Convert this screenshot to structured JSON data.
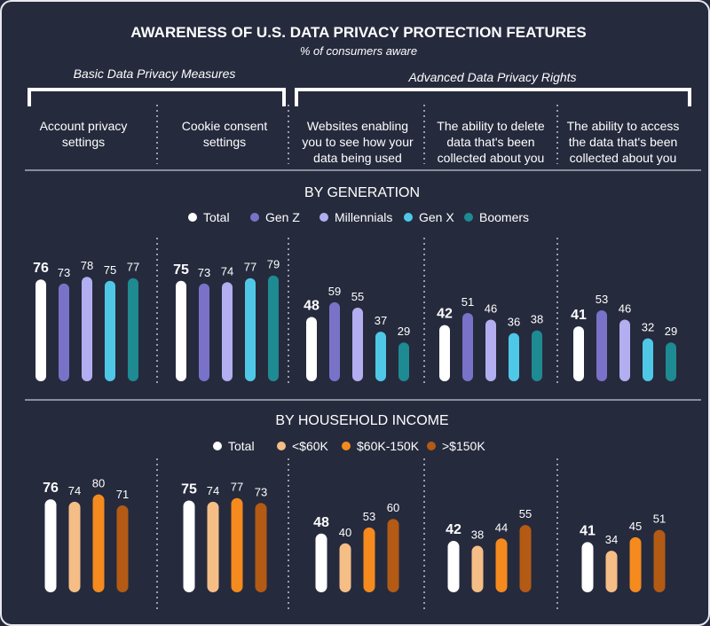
{
  "header": {
    "title": "AWARENESS OF U.S. DATA PRIVACY PROTECTION FEATURES",
    "subtitle": "% of consumers aware"
  },
  "groups": [
    {
      "label": "Basic Data Privacy Measures"
    },
    {
      "label": "Advanced Data Privacy Rights"
    }
  ],
  "columns": [
    {
      "lines": [
        "Account privacy",
        "settings"
      ]
    },
    {
      "lines": [
        "Cookie consent",
        "settings"
      ]
    },
    {
      "lines": [
        "Websites enabling",
        "you to see how your",
        "data being used"
      ]
    },
    {
      "lines": [
        "The ability to delete",
        "data that's been",
        "collected about you"
      ]
    },
    {
      "lines": [
        "The ability to access",
        "the data that's been",
        "collected about you"
      ]
    }
  ],
  "colors": {
    "background": "#262a3d",
    "frame": "#e8e8ee",
    "divider": "#8a8d9c",
    "total": "#ffffff",
    "gen_z": "#7a72c8",
    "millennials": "#b3aef0",
    "gen_x": "#4fc8e8",
    "boomers": "#1e8a92",
    "lt60k": "#f5be86",
    "k60_150": "#f58a1e",
    "gt150k": "#b35a14"
  },
  "chart_data": [
    {
      "type": "bar",
      "title": "BY GENERATION",
      "categories": [
        "Account privacy settings",
        "Cookie consent settings",
        "Websites enabling you to see how your data being used",
        "The ability to delete data that's been collected about you",
        "The ability to access the data that's been collected about you"
      ],
      "series": [
        {
          "name": "Total",
          "color": "#ffffff",
          "values": [
            76,
            75,
            48,
            42,
            41
          ]
        },
        {
          "name": "Gen Z",
          "color": "#7a72c8",
          "values": [
            73,
            73,
            59,
            51,
            53
          ]
        },
        {
          "name": "Millennials",
          "color": "#b3aef0",
          "values": [
            78,
            74,
            55,
            46,
            46
          ]
        },
        {
          "name": "Gen X",
          "color": "#4fc8e8",
          "values": [
            75,
            77,
            37,
            36,
            32
          ]
        },
        {
          "name": "Boomers",
          "color": "#1e8a92",
          "values": [
            77,
            79,
            29,
            38,
            29
          ]
        }
      ],
      "ylim": [
        0,
        100
      ],
      "legend": "top"
    },
    {
      "type": "bar",
      "title": "BY HOUSEHOLD INCOME",
      "categories": [
        "Account privacy settings",
        "Cookie consent settings",
        "Websites enabling you to see how your data being used",
        "The ability to delete data that's been collected about you",
        "The ability to access the data that's been collected about you"
      ],
      "series": [
        {
          "name": "Total",
          "color": "#ffffff",
          "values": [
            76,
            75,
            48,
            42,
            41
          ]
        },
        {
          "name": "<$60K",
          "color": "#f5be86",
          "values": [
            74,
            74,
            40,
            38,
            34
          ]
        },
        {
          "name": "$60K-150K",
          "color": "#f58a1e",
          "values": [
            80,
            77,
            53,
            44,
            45
          ]
        },
        {
          "name": ">$150K",
          "color": "#b35a14",
          "values": [
            71,
            73,
            60,
            55,
            51
          ]
        }
      ],
      "ylim": [
        0,
        100
      ],
      "legend": "top"
    }
  ]
}
